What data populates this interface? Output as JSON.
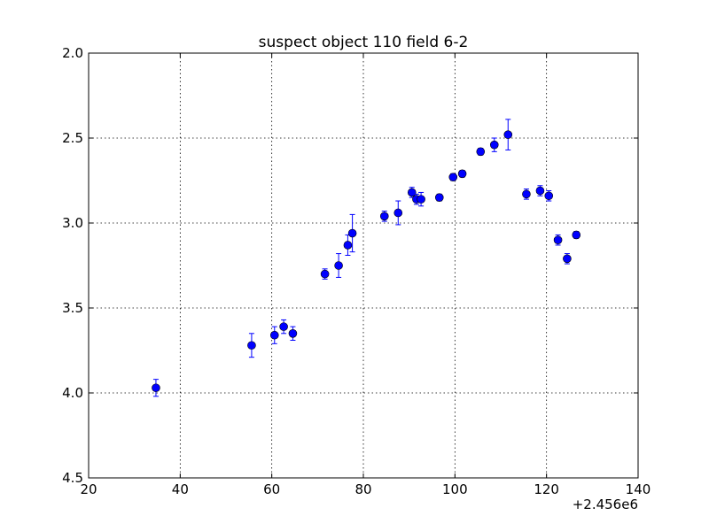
{
  "chart_data": {
    "type": "scatter",
    "title": "suspect object 110 field 6-2",
    "xlabel": "",
    "ylabel": "",
    "x_offset_label": "+2.456e6",
    "xlim": [
      20,
      140
    ],
    "ylim": [
      4.5,
      2.0
    ],
    "y_inverted": true,
    "grid": true,
    "x_ticks": [
      20,
      40,
      60,
      80,
      100,
      120,
      140
    ],
    "x_tick_labels": [
      "20",
      "40",
      "60",
      "80",
      "100",
      "120",
      "140"
    ],
    "y_ticks": [
      2.0,
      2.5,
      3.0,
      3.5,
      4.0,
      4.5
    ],
    "y_tick_labels": [
      "2.0",
      "2.5",
      "3.0",
      "3.5",
      "4.0",
      "4.5"
    ],
    "marker_color": "#0000ff",
    "errorbar_color": "#0000ff",
    "series": [
      {
        "points": [
          {
            "x": 34.7,
            "y": 3.97,
            "err": 0.05
          },
          {
            "x": 55.6,
            "y": 3.72,
            "err": 0.07
          },
          {
            "x": 60.6,
            "y": 3.66,
            "err": 0.05
          },
          {
            "x": 62.6,
            "y": 3.61,
            "err": 0.04
          },
          {
            "x": 64.6,
            "y": 3.65,
            "err": 0.04
          },
          {
            "x": 71.6,
            "y": 3.3,
            "err": 0.03
          },
          {
            "x": 74.6,
            "y": 3.25,
            "err": 0.07
          },
          {
            "x": 76.6,
            "y": 3.13,
            "err": 0.06
          },
          {
            "x": 77.6,
            "y": 3.06,
            "err": 0.11
          },
          {
            "x": 84.6,
            "y": 2.96,
            "err": 0.03
          },
          {
            "x": 87.6,
            "y": 2.94,
            "err": 0.07
          },
          {
            "x": 90.6,
            "y": 2.82,
            "err": 0.03
          },
          {
            "x": 91.6,
            "y": 2.86,
            "err": 0.03
          },
          {
            "x": 92.6,
            "y": 2.86,
            "err": 0.04
          },
          {
            "x": 96.6,
            "y": 2.85,
            "err": 0.02
          },
          {
            "x": 99.6,
            "y": 2.73,
            "err": 0.02
          },
          {
            "x": 101.6,
            "y": 2.71,
            "err": 0.02
          },
          {
            "x": 105.6,
            "y": 2.58,
            "err": 0.02
          },
          {
            "x": 108.6,
            "y": 2.54,
            "err": 0.04
          },
          {
            "x": 111.6,
            "y": 2.48,
            "err": 0.09
          },
          {
            "x": 115.6,
            "y": 2.83,
            "err": 0.03
          },
          {
            "x": 118.6,
            "y": 2.81,
            "err": 0.03
          },
          {
            "x": 120.5,
            "y": 2.84,
            "err": 0.03
          },
          {
            "x": 122.5,
            "y": 3.1,
            "err": 0.03
          },
          {
            "x": 124.5,
            "y": 3.21,
            "err": 0.03
          },
          {
            "x": 126.5,
            "y": 3.07,
            "err": 0.02
          }
        ]
      }
    ]
  }
}
